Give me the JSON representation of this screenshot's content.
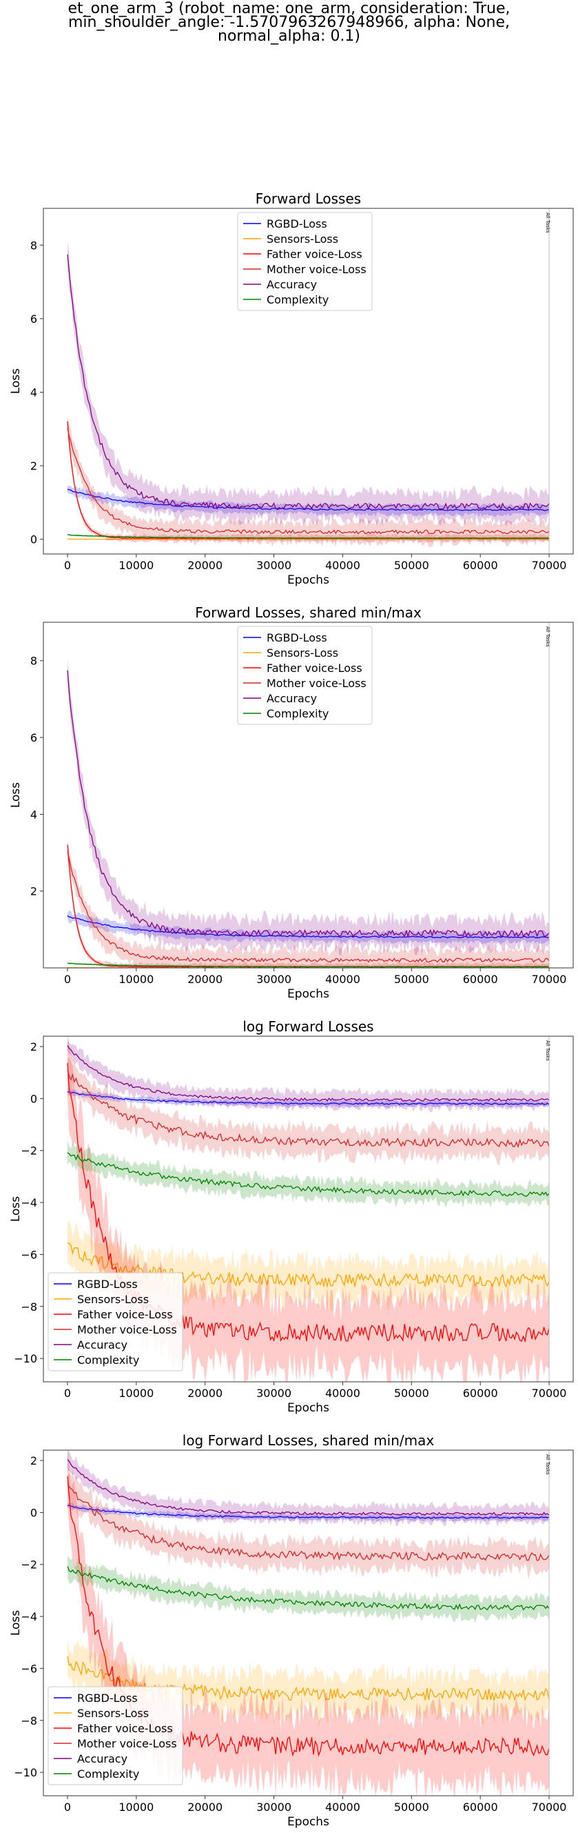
{
  "figure": {
    "suptitle_lines": [
      "et_one_arm_3 (robot_name: one_arm, consideration: True,",
      "min_shoulder_angle: -1.5707963267948966, alpha: None,",
      "normal_alpha: 0.1)"
    ]
  },
  "chart_data": [
    {
      "type": "line",
      "title": "Forward Losses",
      "xlabel": "Epochs",
      "ylabel": "Loss",
      "xlim": [
        -3500,
        73500
      ],
      "ylim": [
        -0.4,
        9.0
      ],
      "xticks": [
        0,
        10000,
        20000,
        30000,
        40000,
        50000,
        60000,
        70000
      ],
      "yticks": [
        0,
        2,
        4,
        6,
        8
      ],
      "log": false,
      "legend": "upper-center",
      "vline": {
        "x": 70000,
        "label": "All Tasks"
      },
      "series": [
        {
          "name": "RGBD-Loss",
          "color": "#0000ff",
          "start": 1.35,
          "end": 0.8,
          "rate": 10000,
          "spread": 0.12,
          "noise": 0.02
        },
        {
          "name": "Sensors-Loss",
          "color": "#ffa500",
          "start": 0.005,
          "end": 0.001,
          "rate": 3000,
          "spread": 0.005,
          "noise": 0.001
        },
        {
          "name": "Father voice-Loss",
          "color": "#ff0000",
          "start": 3.2,
          "end": 0.03,
          "rate": 1300,
          "spread": 0.08,
          "noise": 0.01
        },
        {
          "name": "Mother voice-Loss",
          "color": "#d62728",
          "start": 3.0,
          "end": 0.2,
          "rate": 3500,
          "spread": 0.25,
          "noise": 0.05
        },
        {
          "name": "Accuracy",
          "color": "#800080",
          "start": 7.7,
          "end": 0.9,
          "rate": 3500,
          "spread": 0.35,
          "noise": 0.08
        },
        {
          "name": "Complexity",
          "color": "#008000",
          "start": 0.12,
          "end": 0.03,
          "rate": 9000,
          "spread": 0.02,
          "noise": 0.005
        }
      ]
    },
    {
      "type": "line",
      "title": "Forward Losses, shared min/max",
      "xlabel": "Epochs",
      "ylabel": "Loss",
      "xlim": [
        -3500,
        73500
      ],
      "ylim": [
        0.0,
        9.0
      ],
      "xticks": [
        0,
        10000,
        20000,
        30000,
        40000,
        50000,
        60000,
        70000
      ],
      "yticks": [
        2,
        4,
        6,
        8
      ],
      "log": false,
      "legend": "upper-center",
      "vline": {
        "x": 70000,
        "label": "All Tasks"
      },
      "series": [
        {
          "name": "RGBD-Loss",
          "color": "#0000ff",
          "start": 1.35,
          "end": 0.8,
          "rate": 10000,
          "spread": 0.12,
          "noise": 0.02
        },
        {
          "name": "Sensors-Loss",
          "color": "#ffa500",
          "start": 0.005,
          "end": 0.001,
          "rate": 3000,
          "spread": 0.005,
          "noise": 0.001
        },
        {
          "name": "Father voice-Loss",
          "color": "#ff0000",
          "start": 3.2,
          "end": 0.03,
          "rate": 1300,
          "spread": 0.08,
          "noise": 0.01
        },
        {
          "name": "Mother voice-Loss",
          "color": "#d62728",
          "start": 3.0,
          "end": 0.2,
          "rate": 3500,
          "spread": 0.25,
          "noise": 0.05
        },
        {
          "name": "Accuracy",
          "color": "#800080",
          "start": 7.7,
          "end": 0.9,
          "rate": 3500,
          "spread": 0.35,
          "noise": 0.08
        },
        {
          "name": "Complexity",
          "color": "#008000",
          "start": 0.12,
          "end": 0.03,
          "rate": 9000,
          "spread": 0.02,
          "noise": 0.005
        }
      ]
    },
    {
      "type": "line",
      "title": "log Forward Losses",
      "xlabel": "Epochs",
      "ylabel": "Loss",
      "xlim": [
        -3500,
        73500
      ],
      "ylim": [
        -10.9,
        2.4
      ],
      "xticks": [
        0,
        10000,
        20000,
        30000,
        40000,
        50000,
        60000,
        70000
      ],
      "yticks": [
        -10,
        -8,
        -6,
        -4,
        -2,
        0,
        2
      ],
      "log": true,
      "legend": "lower-left",
      "vline": {
        "x": 70000,
        "label": "All Tasks"
      },
      "series": [
        {
          "name": "RGBD-Loss",
          "color": "#0000ff",
          "start": 0.25,
          "end": -0.2,
          "rate": 10000,
          "spread": 0.1,
          "noise": 0.03
        },
        {
          "name": "Sensors-Loss",
          "color": "#ffa500",
          "start": -5.7,
          "end": -7.0,
          "rate": 8000,
          "spread": 0.7,
          "noise": 0.25
        },
        {
          "name": "Father voice-Loss",
          "color": "#ff0000",
          "start": 1.15,
          "end": -9.0,
          "rate": 5000,
          "spread": 1.3,
          "noise": 0.35
        },
        {
          "name": "Mother voice-Loss",
          "color": "#d62728",
          "start": 1.0,
          "end": -1.7,
          "rate": 9000,
          "spread": 0.5,
          "noise": 0.15
        },
        {
          "name": "Accuracy",
          "color": "#800080",
          "start": 2.0,
          "end": -0.05,
          "rate": 7000,
          "spread": 0.3,
          "noise": 0.05
        },
        {
          "name": "Complexity",
          "color": "#008000",
          "start": -2.15,
          "end": -3.7,
          "rate": 18000,
          "spread": 0.35,
          "noise": 0.1
        }
      ]
    },
    {
      "type": "line",
      "title": "log Forward Losses, shared min/max",
      "xlabel": "Epochs",
      "ylabel": "Loss",
      "xlim": [
        -3500,
        73500
      ],
      "ylim": [
        -10.9,
        2.4
      ],
      "xticks": [
        0,
        10000,
        20000,
        30000,
        40000,
        50000,
        60000,
        70000
      ],
      "yticks": [
        -10,
        -8,
        -6,
        -4,
        -2,
        0,
        2
      ],
      "log": true,
      "legend": "lower-left",
      "vline": {
        "x": 70000,
        "label": "All Tasks"
      },
      "series": [
        {
          "name": "RGBD-Loss",
          "color": "#0000ff",
          "start": 0.25,
          "end": -0.2,
          "rate": 10000,
          "spread": 0.1,
          "noise": 0.03
        },
        {
          "name": "Sensors-Loss",
          "color": "#ffa500",
          "start": -5.7,
          "end": -7.0,
          "rate": 8000,
          "spread": 0.7,
          "noise": 0.25
        },
        {
          "name": "Father voice-Loss",
          "color": "#ff0000",
          "start": 1.15,
          "end": -9.0,
          "rate": 5000,
          "spread": 1.3,
          "noise": 0.35
        },
        {
          "name": "Mother voice-Loss",
          "color": "#d62728",
          "start": 1.0,
          "end": -1.7,
          "rate": 9000,
          "spread": 0.5,
          "noise": 0.15
        },
        {
          "name": "Accuracy",
          "color": "#800080",
          "start": 2.0,
          "end": -0.05,
          "rate": 7000,
          "spread": 0.3,
          "noise": 0.05
        },
        {
          "name": "Complexity",
          "color": "#008000",
          "start": -2.15,
          "end": -3.7,
          "rate": 18000,
          "spread": 0.35,
          "noise": 0.1
        }
      ]
    }
  ]
}
